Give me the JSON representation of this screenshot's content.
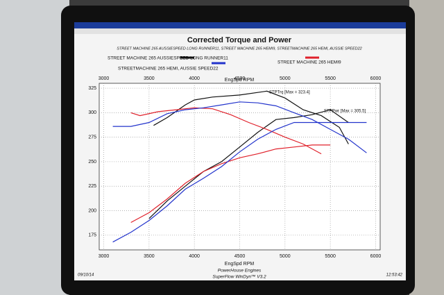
{
  "chart_data": {
    "type": "line",
    "title": "Corrected Torque and Power",
    "subtitle": "STREET MACHINE 265 AUSSIESPEED LONG RUNNER11, STREET MACHINE 265 HEMI9, STREETMACHINE 265 HEMI, AUSSIE SPEED22",
    "x_label": "EngSpd RPM",
    "torque_annotation": "STPTrq [Max = 323.4]",
    "power_annotation": "STPPwr [Max = 305.5]",
    "footer": [
      "PowerHouse Engines",
      "SuperFlow WinDyn™ V3.2"
    ],
    "date": "09/10/14",
    "time": "12:53:42",
    "xlim": [
      2950,
      6050
    ],
    "xticks": [
      3000,
      3500,
      4000,
      4500,
      5000,
      5500,
      6000
    ],
    "ylim": [
      160,
      330
    ],
    "yticks": [
      175,
      200,
      225,
      250,
      275,
      300,
      325
    ],
    "grid": true,
    "series": [
      {
        "name": "STREET MACHINE 265 AUSSIESPEED LONG RUNNER11",
        "color": "#111111",
        "torque": {
          "x": [
            3550,
            3700,
            3900,
            4000,
            4200,
            4500,
            4800,
            5000,
            5200,
            5400,
            5600,
            5700
          ],
          "values": [
            287,
            295,
            308,
            313,
            316,
            318,
            322,
            315,
            303,
            297,
            285,
            268
          ]
        },
        "power": {
          "x": [
            3500,
            3700,
            3900,
            4100,
            4300,
            4500,
            4700,
            4900,
            5100,
            5300,
            5500,
            5700
          ],
          "values": [
            192,
            210,
            225,
            240,
            250,
            265,
            280,
            293,
            295,
            298,
            303,
            290
          ]
        }
      },
      {
        "name": "STREET MACHINE 265 HEMI9",
        "color": "#e0202a",
        "torque": {
          "x": [
            3300,
            3400,
            3600,
            3800,
            4000,
            4200,
            4400,
            4600,
            4800,
            5000,
            5200,
            5400
          ],
          "values": [
            300,
            297,
            301,
            303,
            305,
            304,
            298,
            290,
            283,
            275,
            268,
            258
          ]
        },
        "power": {
          "x": [
            3300,
            3500,
            3700,
            3900,
            4100,
            4300,
            4500,
            4700,
            4900,
            5100,
            5300,
            5500
          ],
          "values": [
            188,
            198,
            212,
            228,
            240,
            248,
            254,
            258,
            263,
            265,
            267,
            267
          ]
        }
      },
      {
        "name": "STREETMACHINE 265 HEMI, AUSSIE SPEED22",
        "color": "#2233cc",
        "torque": {
          "x": [
            3100,
            3300,
            3500,
            3700,
            3900,
            4100,
            4300,
            4500,
            4700,
            4900,
            5100,
            5300,
            5500,
            5700,
            5900
          ],
          "values": [
            286,
            286,
            290,
            299,
            303,
            305,
            308,
            311,
            310,
            307,
            300,
            293,
            283,
            273,
            259
          ]
        },
        "power": {
          "x": [
            3100,
            3300,
            3500,
            3700,
            3900,
            4100,
            4300,
            4500,
            4700,
            4900,
            5100,
            5300,
            5500,
            5700,
            5900
          ],
          "values": [
            168,
            178,
            190,
            205,
            222,
            233,
            245,
            260,
            273,
            283,
            290,
            290,
            290,
            290,
            290
          ]
        }
      }
    ]
  }
}
